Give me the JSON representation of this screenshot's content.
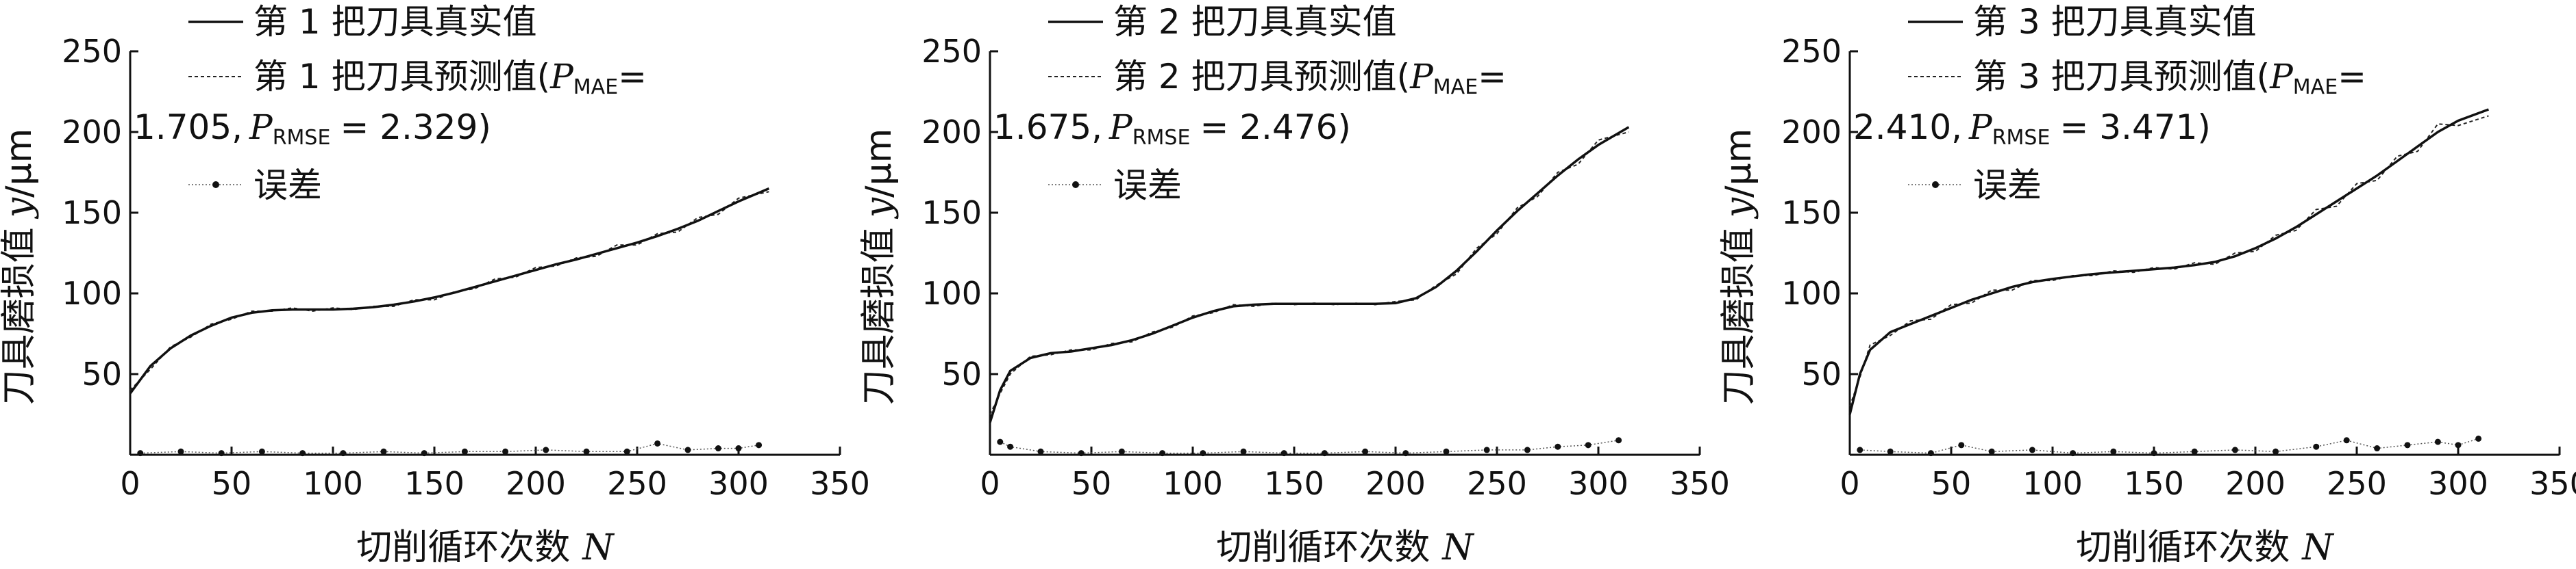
{
  "chart_data": [
    {
      "type": "line",
      "xlabel": "切削循环次数",
      "xlabel_var": "N",
      "ylabel": "刀具磨损值",
      "ylabel_var": "y",
      "ylabel_unit": "/μm",
      "xlim": [
        0,
        350
      ],
      "ylim": [
        0,
        250
      ],
      "xticks": [
        0,
        50,
        100,
        150,
        200,
        250,
        300,
        350
      ],
      "yticks": [
        50,
        100,
        150,
        200,
        250
      ],
      "legend": {
        "placement": "top-left",
        "true_label": "第 1 把刀具真实值",
        "pred_label": "第 1 把刀具预测值",
        "mae_sym": "P",
        "mae_sub": "MAE",
        "mae_val": "1.705",
        "rmse_sym": "P",
        "rmse_sub": "RMSE",
        "rmse_val": "2.329",
        "error_label": "误差"
      },
      "series": [
        {
          "name": "第 1 把刀具真实值",
          "x": [
            0,
            10,
            20,
            30,
            40,
            50,
            60,
            70,
            80,
            90,
            100,
            110,
            120,
            130,
            140,
            150,
            160,
            170,
            180,
            190,
            200,
            210,
            220,
            230,
            240,
            250,
            260,
            270,
            280,
            290,
            300,
            315
          ],
          "y": [
            38,
            55,
            66,
            74,
            80,
            85,
            88,
            89.5,
            90,
            90,
            90,
            90.5,
            91.5,
            93,
            95,
            97.5,
            100.5,
            104,
            107.5,
            111,
            114.5,
            118,
            121,
            124.5,
            128,
            131.5,
            135.5,
            140,
            145,
            151,
            157,
            165
          ]
        },
        {
          "name": "第 1 把刀具预测值",
          "x": [
            0,
            10,
            20,
            30,
            40,
            50,
            60,
            70,
            80,
            90,
            100,
            110,
            120,
            130,
            140,
            150,
            160,
            170,
            180,
            190,
            200,
            210,
            220,
            230,
            240,
            250,
            260,
            270,
            280,
            290,
            300,
            315
          ],
          "y": [
            40,
            53,
            67,
            73,
            81,
            84,
            89,
            89,
            91,
            89,
            91,
            90,
            92,
            92,
            96,
            96,
            101,
            103,
            109,
            110,
            116,
            117,
            122,
            123,
            130,
            130,
            137,
            138,
            147,
            149,
            159,
            163
          ]
        },
        {
          "name": "误差",
          "x": [
            5,
            25,
            45,
            65,
            85,
            105,
            125,
            145,
            165,
            185,
            205,
            225,
            245,
            260,
            275,
            290,
            300,
            310
          ],
          "y": [
            1,
            2,
            1,
            2,
            1,
            1,
            2,
            1,
            2,
            2,
            3,
            2,
            2,
            7,
            3,
            4,
            4,
            6
          ]
        }
      ]
    },
    {
      "type": "line",
      "xlabel": "切削循环次数",
      "xlabel_var": "N",
      "ylabel": "刀具磨损值",
      "ylabel_var": "y",
      "ylabel_unit": "/μm",
      "xlim": [
        0,
        350
      ],
      "ylim": [
        0,
        250
      ],
      "xticks": [
        0,
        50,
        100,
        150,
        200,
        250,
        300,
        350
      ],
      "yticks": [
        50,
        100,
        150,
        200,
        250
      ],
      "legend": {
        "placement": "top-left",
        "true_label": "第 2 把刀具真实值",
        "pred_label": "第 2 把刀具预测值",
        "mae_sym": "P",
        "mae_sub": "MAE",
        "mae_val": "1.675",
        "rmse_sym": "P",
        "rmse_sub": "RMSE",
        "rmse_val": "2.476",
        "error_label": "误差"
      },
      "series": [
        {
          "name": "第 2 把刀具真实值",
          "x": [
            0,
            5,
            10,
            20,
            30,
            40,
            50,
            60,
            70,
            80,
            90,
            100,
            110,
            120,
            130,
            140,
            150,
            160,
            170,
            180,
            190,
            200,
            210,
            220,
            230,
            240,
            250,
            260,
            270,
            280,
            290,
            300,
            315
          ],
          "y": [
            20,
            40,
            52,
            60,
            63,
            64,
            66,
            68,
            71,
            75,
            80,
            85,
            89,
            92,
            93,
            93.5,
            93.5,
            93.5,
            93.5,
            93.5,
            93.5,
            94,
            97,
            104,
            114,
            126,
            139,
            151,
            162,
            173,
            183,
            192,
            203
          ]
        },
        {
          "name": "第 2 把刀具预测值",
          "x": [
            0,
            5,
            10,
            20,
            30,
            40,
            50,
            60,
            70,
            80,
            90,
            100,
            110,
            120,
            130,
            140,
            150,
            160,
            170,
            180,
            190,
            200,
            210,
            220,
            230,
            240,
            250,
            260,
            270,
            280,
            290,
            300,
            315
          ],
          "y": [
            25,
            38,
            50,
            61,
            62,
            65,
            65,
            69,
            70,
            76,
            79,
            86,
            88,
            93,
            92,
            94,
            93,
            94,
            93,
            94,
            93,
            95,
            96,
            105,
            112,
            128,
            137,
            153,
            160,
            175,
            180,
            195,
            200
          ]
        },
        {
          "name": "误差",
          "x": [
            5,
            10,
            25,
            45,
            65,
            85,
            105,
            125,
            145,
            165,
            185,
            205,
            225,
            245,
            265,
            280,
            295,
            310
          ],
          "y": [
            8,
            5,
            2,
            1,
            2,
            1,
            1,
            2,
            1,
            1,
            2,
            1,
            2,
            3,
            3,
            5,
            6,
            9
          ]
        }
      ]
    },
    {
      "type": "line",
      "xlabel": "切削循环次数",
      "xlabel_var": "N",
      "ylabel": "刀具磨损值",
      "ylabel_var": "y",
      "ylabel_unit": "/μm",
      "xlim": [
        0,
        350
      ],
      "ylim": [
        0,
        250
      ],
      "xticks": [
        0,
        50,
        100,
        150,
        200,
        250,
        300,
        350
      ],
      "yticks": [
        50,
        100,
        150,
        200,
        250
      ],
      "legend": {
        "placement": "top-left",
        "true_label": "第 3 把刀具真实值",
        "pred_label": "第 3 把刀具预测值",
        "mae_sym": "P",
        "mae_sub": "MAE",
        "mae_val": "2.410",
        "rmse_sym": "P",
        "rmse_sub": "RMSE",
        "rmse_val": "3.471",
        "error_label": "误差"
      },
      "series": [
        {
          "name": "第 3 把刀具真实值",
          "x": [
            0,
            5,
            10,
            20,
            30,
            40,
            50,
            60,
            70,
            80,
            90,
            100,
            110,
            120,
            130,
            140,
            150,
            160,
            170,
            180,
            190,
            200,
            210,
            220,
            230,
            240,
            250,
            260,
            270,
            280,
            290,
            300,
            315
          ],
          "y": [
            25,
            50,
            65,
            76,
            81,
            86,
            91,
            96,
            100,
            104,
            107,
            109,
            110.5,
            112,
            113,
            114,
            115,
            116,
            117.5,
            119.5,
            123,
            128,
            134,
            141,
            149,
            157,
            165,
            173,
            182,
            191,
            200,
            207,
            214
          ]
        },
        {
          "name": "第 3 把刀具预测值",
          "x": [
            0,
            5,
            10,
            20,
            30,
            40,
            50,
            60,
            70,
            80,
            90,
            100,
            110,
            120,
            130,
            140,
            150,
            160,
            170,
            180,
            190,
            200,
            210,
            220,
            230,
            240,
            250,
            260,
            270,
            280,
            290,
            300,
            315
          ],
          "y": [
            30,
            48,
            68,
            74,
            83,
            84,
            93,
            94,
            102,
            102,
            108,
            108,
            111,
            111,
            114,
            113,
            116,
            115,
            119,
            118,
            125,
            126,
            136,
            139,
            152,
            154,
            168,
            170,
            185,
            188,
            205,
            204,
            210
          ]
        },
        {
          "name": "误差",
          "x": [
            5,
            20,
            40,
            55,
            70,
            90,
            110,
            130,
            150,
            170,
            190,
            210,
            230,
            245,
            260,
            275,
            290,
            300,
            310
          ],
          "y": [
            3,
            2,
            1,
            6,
            2,
            3,
            1,
            2,
            1,
            2,
            3,
            2,
            5,
            9,
            4,
            6,
            8,
            6,
            10
          ]
        }
      ]
    }
  ]
}
